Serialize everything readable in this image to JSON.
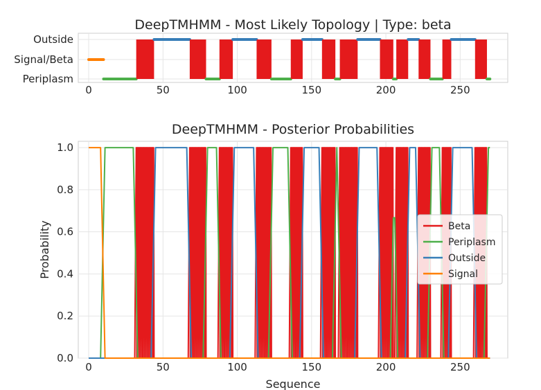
{
  "chart_data": [
    {
      "type": "area",
      "title": "DeepTMHMM - Most Likely Topology | Type: beta",
      "xlabel": "",
      "ylabel": "",
      "xlim": [
        -7,
        282
      ],
      "x_ticks": [
        0,
        50,
        100,
        150,
        200,
        250
      ],
      "y_categories": [
        "Periplasm",
        "Signal/Beta",
        "Outside"
      ],
      "grid": true,
      "colors": {
        "Beta": "#e41a1c",
        "Periplasm": "#4daf4a",
        "Outside": "#377eb8",
        "Signal": "#ff7f00"
      },
      "segments": [
        {
          "label": "Signal",
          "start": 0,
          "end": 10
        },
        {
          "label": "Periplasm",
          "start": 10,
          "end": 32
        },
        {
          "label": "Beta",
          "start": 32,
          "end": 44
        },
        {
          "label": "Outside",
          "start": 44,
          "end": 68
        },
        {
          "label": "Beta",
          "start": 68,
          "end": 79
        },
        {
          "label": "Periplasm",
          "start": 79,
          "end": 88
        },
        {
          "label": "Beta",
          "start": 88,
          "end": 97
        },
        {
          "label": "Outside",
          "start": 97,
          "end": 113
        },
        {
          "label": "Beta",
          "start": 113,
          "end": 123
        },
        {
          "label": "Periplasm",
          "start": 123,
          "end": 136
        },
        {
          "label": "Beta",
          "start": 136,
          "end": 144
        },
        {
          "label": "Outside",
          "start": 144,
          "end": 157
        },
        {
          "label": "Beta",
          "start": 157,
          "end": 166
        },
        {
          "label": "Periplasm",
          "start": 166,
          "end": 169
        },
        {
          "label": "Beta",
          "start": 169,
          "end": 181
        },
        {
          "label": "Outside",
          "start": 181,
          "end": 196
        },
        {
          "label": "Beta",
          "start": 196,
          "end": 205
        },
        {
          "label": "Periplasm",
          "start": 205,
          "end": 207
        },
        {
          "label": "Beta",
          "start": 207,
          "end": 215
        },
        {
          "label": "Outside",
          "start": 215,
          "end": 222
        },
        {
          "label": "Beta",
          "start": 222,
          "end": 230
        },
        {
          "label": "Periplasm",
          "start": 230,
          "end": 238
        },
        {
          "label": "Beta",
          "start": 238,
          "end": 244
        },
        {
          "label": "Outside",
          "start": 244,
          "end": 260
        },
        {
          "label": "Beta",
          "start": 260,
          "end": 268
        },
        {
          "label": "Periplasm",
          "start": 268,
          "end": 270
        }
      ]
    },
    {
      "type": "line",
      "title": "DeepTMHMM - Posterior Probabilities",
      "xlabel": "Sequence",
      "ylabel": "Probability",
      "xlim": [
        -7,
        282
      ],
      "ylim": [
        0,
        1.03
      ],
      "x_ticks": [
        0,
        50,
        100,
        150,
        200,
        250
      ],
      "y_ticks": [
        "0.0",
        "0.2",
        "0.4",
        "0.6",
        "0.8",
        "1.0"
      ],
      "grid": true,
      "legend_position": "right",
      "series": [
        {
          "name": "Beta",
          "color": "#e41a1c"
        },
        {
          "name": "Periplasm",
          "color": "#4daf4a"
        },
        {
          "name": "Outside",
          "color": "#377eb8"
        },
        {
          "name": "Signal",
          "color": "#ff7f00"
        }
      ]
    }
  ]
}
